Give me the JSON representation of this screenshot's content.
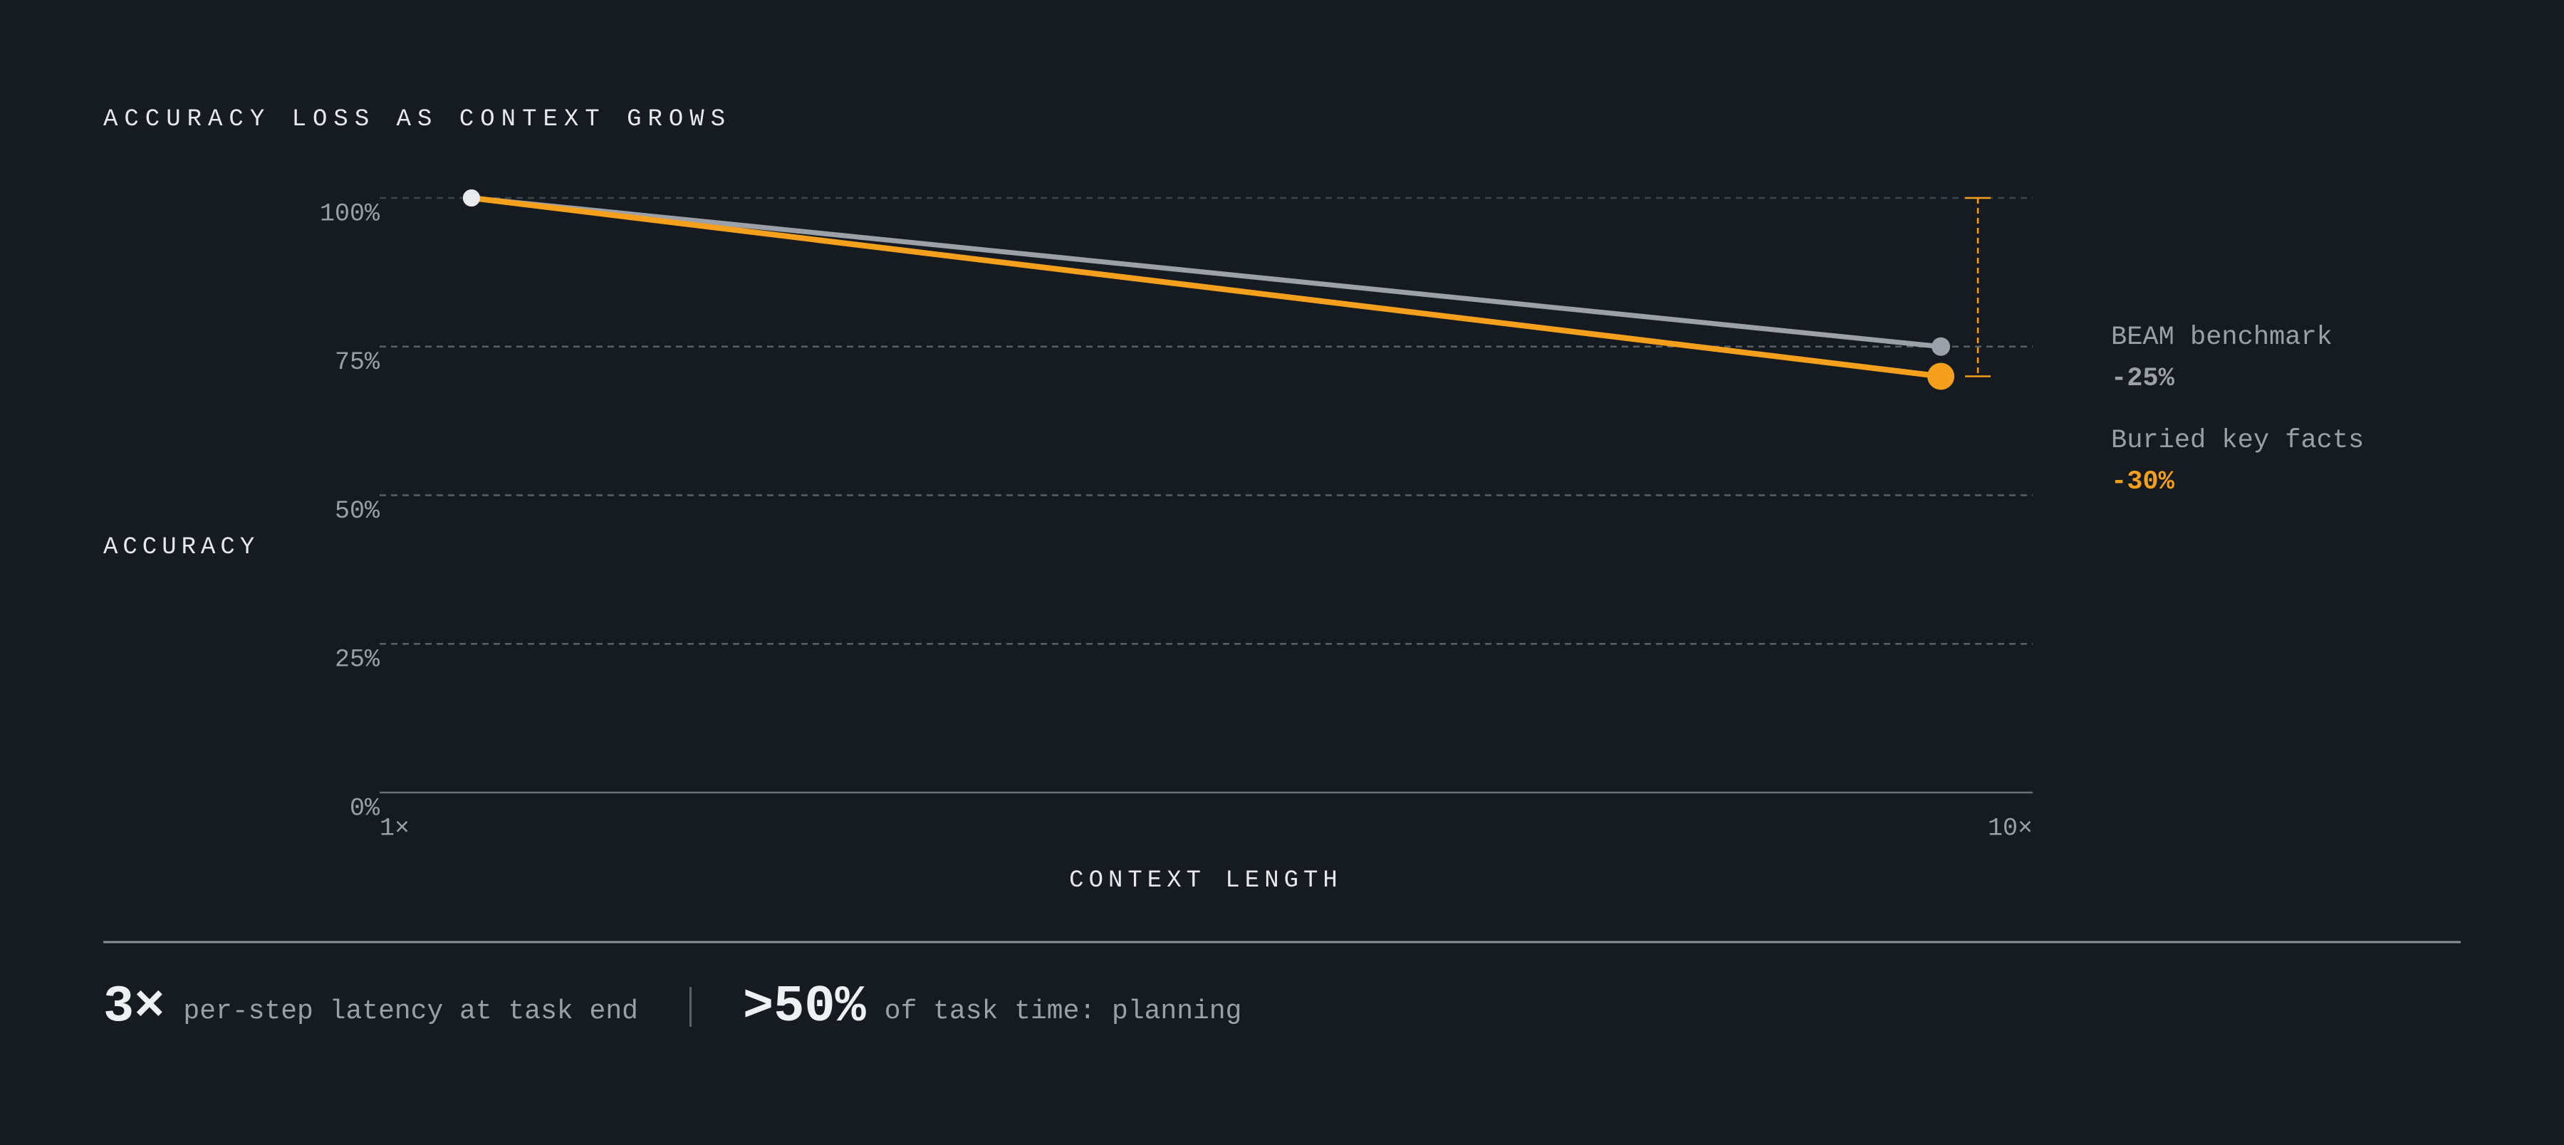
{
  "chart_data": {
    "type": "line",
    "title": "ACCURACY LOSS AS CONTEXT GROWS",
    "y_label": "ACCURACY",
    "x_label": "CONTEXT LENGTH",
    "x": [
      1.5,
      9.5
    ],
    "xlim": [
      1,
      10
    ],
    "xticks": [
      {
        "value": 1,
        "label": "1×"
      },
      {
        "value": 10,
        "label": "10×"
      }
    ],
    "ylim": [
      0,
      100
    ],
    "yticks": [
      {
        "value": 0,
        "label": "0%"
      },
      {
        "value": 25,
        "label": "25%"
      },
      {
        "value": 50,
        "label": "50%"
      },
      {
        "value": 75,
        "label": "75%"
      },
      {
        "value": 100,
        "label": "100%"
      }
    ],
    "grid": true,
    "series": [
      {
        "name": "BEAM benchmark",
        "color": "#9ca0a8",
        "values": [
          100,
          75
        ],
        "change_label": "-25%"
      },
      {
        "name": "Buried key facts",
        "color": "#f5a01c",
        "values": [
          100,
          70
        ],
        "change_label": "-30%"
      }
    ]
  },
  "stats": [
    {
      "figure": "3×",
      "text": "per-step latency at task end"
    },
    {
      "figure": ">50%",
      "text": "of task time: planning"
    }
  ]
}
